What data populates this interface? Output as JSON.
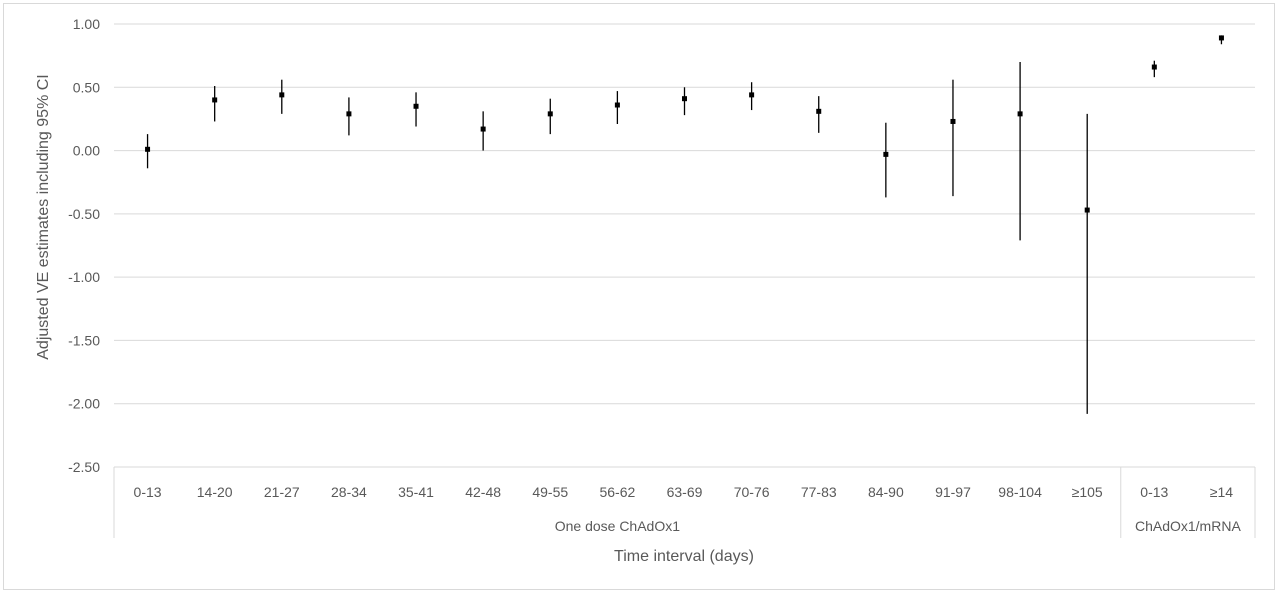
{
  "chart_data": {
    "type": "scatter",
    "title": "",
    "xlabel": "Time interval (days)",
    "ylabel": "Adjusted VE estimates including 95% CI",
    "ylim": [
      -2.5,
      1.0
    ],
    "yticks": [
      "1.00",
      "0.50",
      "0.00",
      "-0.50",
      "-1.00",
      "-1.50",
      "-2.00",
      "-2.50"
    ],
    "grid": true,
    "legend": "none",
    "groups": [
      {
        "label": "One dose ChAdOx1",
        "points": [
          {
            "x": "0-13",
            "est": 0.01,
            "lower": -0.14,
            "upper": 0.13
          },
          {
            "x": "14-20",
            "est": 0.4,
            "lower": 0.23,
            "upper": 0.51
          },
          {
            "x": "21-27",
            "est": 0.44,
            "lower": 0.29,
            "upper": 0.56
          },
          {
            "x": "28-34",
            "est": 0.29,
            "lower": 0.12,
            "upper": 0.42
          },
          {
            "x": "35-41",
            "est": 0.35,
            "lower": 0.19,
            "upper": 0.46
          },
          {
            "x": "42-48",
            "est": 0.17,
            "lower": 0.0,
            "upper": 0.31
          },
          {
            "x": "49-55",
            "est": 0.29,
            "lower": 0.13,
            "upper": 0.41
          },
          {
            "x": "56-62",
            "est": 0.36,
            "lower": 0.21,
            "upper": 0.47
          },
          {
            "x": "63-69",
            "est": 0.41,
            "lower": 0.28,
            "upper": 0.5
          },
          {
            "x": "70-76",
            "est": 0.44,
            "lower": 0.32,
            "upper": 0.54
          },
          {
            "x": "77-83",
            "est": 0.31,
            "lower": 0.14,
            "upper": 0.43
          },
          {
            "x": "84-90",
            "est": -0.03,
            "lower": -0.37,
            "upper": 0.22
          },
          {
            "x": "91-97",
            "est": 0.23,
            "lower": -0.36,
            "upper": 0.56
          },
          {
            "x": "98-104",
            "est": 0.29,
            "lower": -0.71,
            "upper": 0.7
          },
          {
            "x": "≥105",
            "est": -0.47,
            "lower": -2.08,
            "upper": 0.29
          }
        ]
      },
      {
        "label": "ChAdOx1/mRNA",
        "points": [
          {
            "x": "0-13",
            "est": 0.66,
            "lower": 0.58,
            "upper": 0.71
          },
          {
            "x": "≥14",
            "est": 0.89,
            "lower": 0.84,
            "upper": 0.91
          }
        ]
      }
    ],
    "colors": {
      "marker": "#000000",
      "grid": "#d9d9d9",
      "axis_text": "#595959"
    }
  }
}
